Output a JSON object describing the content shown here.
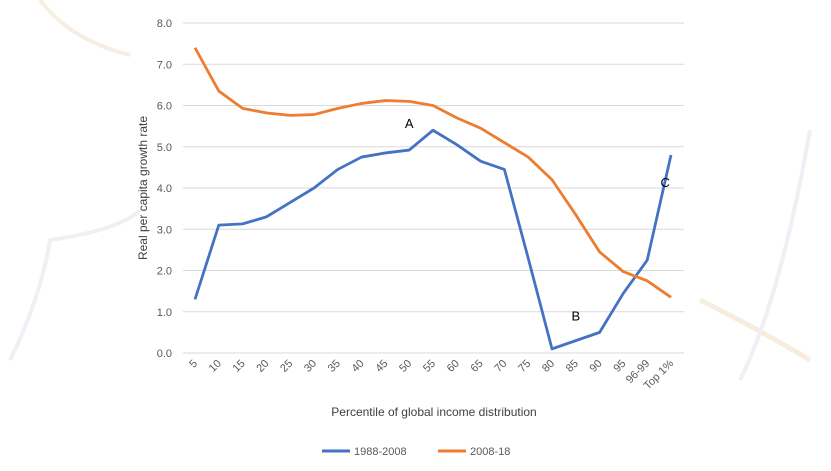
{
  "chart_data": {
    "type": "line",
    "title": "",
    "xlabel": "Percentile of global income distribution",
    "ylabel": "Real per capita growth rate",
    "ylim": [
      0,
      8
    ],
    "yticks": [
      "0.0",
      "1.0",
      "2.0",
      "3.0",
      "4.0",
      "5.0",
      "6.0",
      "7.0",
      "8.0"
    ],
    "grid": true,
    "legend": "bottom",
    "categories": [
      "5",
      "10",
      "15",
      "20",
      "25",
      "30",
      "35",
      "40",
      "45",
      "50",
      "55",
      "60",
      "65",
      "70",
      "75",
      "80",
      "85",
      "90",
      "95",
      "96-99",
      "Top 1%"
    ],
    "series": [
      {
        "name": "1988-2008",
        "color": "#4472C4",
        "values": [
          1.3,
          3.1,
          3.13,
          3.3,
          3.65,
          4.0,
          4.45,
          4.75,
          4.85,
          4.92,
          5.4,
          5.05,
          4.65,
          4.45,
          2.3,
          0.1,
          0.3,
          0.5,
          1.45,
          2.25,
          4.8
        ]
      },
      {
        "name": "2008-18",
        "color": "#ED7D31",
        "values": [
          7.4,
          6.35,
          5.93,
          5.82,
          5.76,
          5.78,
          5.93,
          6.05,
          6.12,
          6.1,
          6.0,
          5.7,
          5.45,
          5.1,
          4.75,
          4.2,
          3.35,
          2.45,
          1.97,
          1.75,
          1.35
        ]
      }
    ],
    "annotations": [
      {
        "text": "A",
        "series": 0,
        "category": "50"
      },
      {
        "text": "B",
        "series": 0,
        "category": "85"
      },
      {
        "text": "C",
        "series": 0,
        "category": "96-99"
      }
    ]
  }
}
